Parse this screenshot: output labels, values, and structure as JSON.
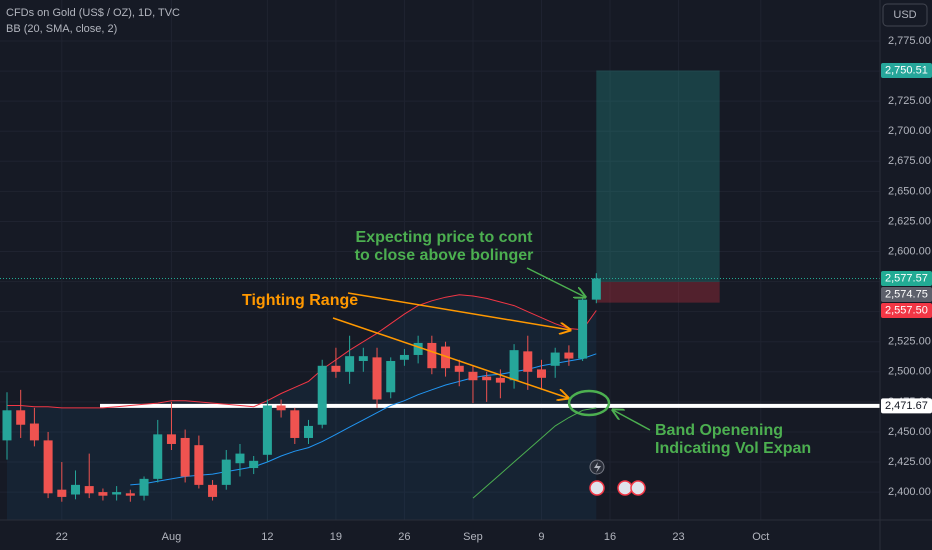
{
  "chart_data": {
    "type": "candlestick",
    "title": "CFDs on Gold (US$ / OZ), 1D, TVC",
    "indicator": "BB (20, SMA, close, 2)",
    "currency": "USD",
    "colors": {
      "up": "#26a69a",
      "down": "#ef5350"
    },
    "x": [
      0,
      1,
      2,
      3,
      4,
      5,
      6,
      7,
      8,
      9,
      10,
      11,
      12,
      13,
      14,
      15,
      16,
      17,
      18,
      19,
      20,
      21,
      22,
      23,
      24,
      25,
      26,
      27,
      28,
      29,
      30,
      31,
      32,
      33,
      34,
      35,
      36,
      37,
      38,
      39,
      40,
      41,
      42,
      43
    ],
    "open": [
      2443,
      2468,
      2457,
      2443,
      2402,
      2398,
      2405,
      2400,
      2398,
      2399,
      2397,
      2411,
      2448,
      2445,
      2439,
      2406,
      2406,
      2424,
      2420,
      2431,
      2472,
      2468,
      2445,
      2456,
      2505,
      2500,
      2509,
      2512,
      2483,
      2510,
      2514,
      2524,
      2521,
      2505,
      2500,
      2496,
      2495,
      2493,
      2517,
      2502,
      2505,
      2516,
      2511,
      2560
    ],
    "high": [
      2483,
      2485,
      2470,
      2450,
      2425,
      2418,
      2432,
      2403,
      2405,
      2402,
      2413,
      2460,
      2475,
      2452,
      2447,
      2410,
      2435,
      2440,
      2430,
      2477,
      2477,
      2470,
      2460,
      2510,
      2520,
      2530,
      2520,
      2520,
      2512,
      2519,
      2530,
      2530,
      2525,
      2510,
      2505,
      2500,
      2502,
      2523,
      2530,
      2510,
      2520,
      2522,
      2562,
      2582
    ],
    "low": [
      2427,
      2445,
      2438,
      2395,
      2392,
      2394,
      2395,
      2393,
      2393,
      2392,
      2393,
      2408,
      2435,
      2408,
      2403,
      2393,
      2402,
      2413,
      2415,
      2425,
      2462,
      2440,
      2440,
      2453,
      2495,
      2490,
      2500,
      2470,
      2478,
      2505,
      2507,
      2498,
      2496,
      2488,
      2474,
      2475,
      2478,
      2486,
      2485,
      2485,
      2495,
      2505,
      2509,
      2557
    ],
    "close": [
      2468,
      2456,
      2443,
      2399,
      2396,
      2406,
      2399,
      2397,
      2400,
      2397,
      2411,
      2448,
      2440,
      2413,
      2406,
      2396,
      2427,
      2432,
      2426,
      2472,
      2468,
      2445,
      2455,
      2505,
      2500,
      2513,
      2513,
      2477,
      2509,
      2514,
      2524,
      2503,
      2503,
      2500,
      2493,
      2493,
      2491,
      2518,
      2500,
      2495,
      2516,
      2511,
      2560,
      2577.57
    ],
    "series": [
      {
        "color": "#f23645",
        "values": [
          2472,
          2472,
          2471,
          2471,
          2470,
          2470,
          2470,
          2470,
          2471,
          2472,
          2473,
          2474,
          2476,
          2476,
          2475,
          2474,
          2473,
          2472,
          2471,
          2476,
          2482,
          2487,
          2492,
          2502,
          2510,
          2518,
          2525,
          2532,
          2540,
          2548,
          2555,
          2559,
          2562,
          2564,
          2563,
          2561,
          2558,
          2555,
          2550,
          2545,
          2540,
          2536,
          2535,
          2551
        ]
      },
      {
        "color": "#2196f3",
        "values": [
          null,
          null,
          null,
          null,
          null,
          null,
          null,
          null,
          null,
          2406,
          2407,
          2409,
          2411,
          2413,
          2414,
          2415,
          2417,
          2419,
          2421,
          2425,
          2430,
          2434,
          2437,
          2442,
          2448,
          2454,
          2460,
          2466,
          2472,
          2476,
          2481,
          2485,
          2489,
          2492,
          2495,
          2497,
          2498,
          2500,
          2502,
          2505,
          2507,
          2509,
          2511,
          2515
        ]
      },
      {
        "color": "#4caf50",
        "values": [
          null,
          null,
          null,
          null,
          null,
          null,
          null,
          null,
          null,
          null,
          null,
          null,
          null,
          null,
          null,
          null,
          null,
          null,
          null,
          null,
          null,
          null,
          null,
          null,
          null,
          null,
          null,
          null,
          null,
          null,
          null,
          null,
          null,
          null,
          2395,
          2405,
          2415,
          2425,
          2435,
          2445,
          2455,
          2462,
          2468,
          2470
        ]
      }
    ],
    "xlim": [
      -0.51,
      63.7
    ],
    "ylim": [
      2376.8,
      2809.1
    ],
    "xticks": [
      {
        "value": 4,
        "label": "22"
      },
      {
        "value": 12,
        "label": "Aug"
      },
      {
        "value": 19,
        "label": "12"
      },
      {
        "value": 24,
        "label": "19"
      },
      {
        "value": 29,
        "label": "26"
      },
      {
        "value": 34,
        "label": "Sep"
      },
      {
        "value": 39,
        "label": "9"
      },
      {
        "value": 44,
        "label": "16"
      },
      {
        "value": 49,
        "label": "23"
      },
      {
        "value": 55,
        "label": "Oct"
      }
    ],
    "yticks": [
      {
        "value": 2400,
        "label": "2,400.00"
      },
      {
        "value": 2425,
        "label": "2,425.00"
      },
      {
        "value": 2450,
        "label": "2,450.00"
      },
      {
        "value": 2475,
        "label": "2,475.00"
      },
      {
        "value": 2500,
        "label": "2,500.00"
      },
      {
        "value": 2525,
        "label": "2,525.00"
      },
      {
        "value": 2550,
        "label": "2,550.00"
      },
      {
        "value": 2575,
        "label": "2,575.00"
      },
      {
        "value": 2600,
        "label": "2,600.00"
      },
      {
        "value": 2625,
        "label": "2,625.00"
      },
      {
        "value": 2650,
        "label": "2,650.00"
      },
      {
        "value": 2675,
        "label": "2,675.00"
      },
      {
        "value": 2700,
        "label": "2,700.00"
      },
      {
        "value": 2725,
        "label": "2,725.00"
      },
      {
        "value": 2750,
        "label": "2,750.00"
      },
      {
        "value": 2775,
        "label": "2,775.00"
      }
    ],
    "grid": true,
    "position": {
      "start": 43,
      "end": 52,
      "target": {
        "value": 2750.51,
        "label": "2,750.51",
        "color": "#26a69a"
      },
      "entry": {
        "value": 2574.75,
        "label": "2,574.75",
        "color": "#5d606b"
      },
      "stop": {
        "value": 2557.5,
        "label": "2,557.50",
        "color": "#f23645"
      }
    },
    "last_price": {
      "value": 2577.57,
      "label": "2,577.57",
      "color": "#22ab94"
    },
    "hline": {
      "value": 2471.67,
      "label": "2,471.67",
      "color": "#ffffff"
    },
    "annotations": [
      {
        "color": "#4caf50",
        "lines": [
          "Expecting price to cont",
          "to close above bolinger"
        ]
      },
      {
        "color": "#ff9800",
        "lines": [
          "Tighting Range"
        ]
      },
      {
        "color": "#4caf50",
        "lines": [
          "Band Openening",
          "Indicating Vol Expan"
        ]
      }
    ]
  }
}
